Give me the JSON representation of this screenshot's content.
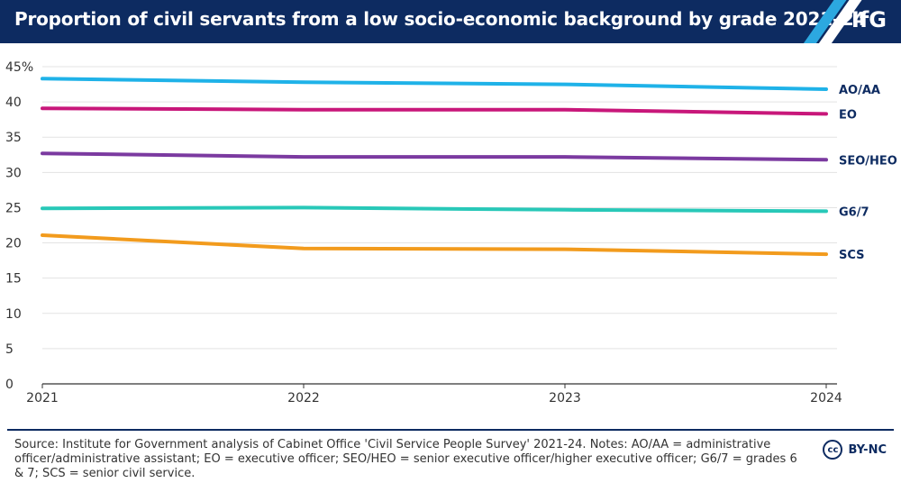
{
  "header": {
    "title": "Proportion of civil servants from a low socio-economic background by grade 2021–24",
    "logo": "IfG",
    "bg_color": "#0d2b61",
    "stripe_colors": [
      "#2ca8e0",
      "#ffffff"
    ]
  },
  "chart_data": {
    "type": "line",
    "title": "Proportion of civil servants from a low socio-economic background by grade 2021–24",
    "x": [
      2021,
      2022,
      2023,
      2024
    ],
    "x_tick_labels": [
      "2021",
      "2022",
      "2023",
      "2024"
    ],
    "ylim": [
      0,
      45
    ],
    "y_ticks": [
      0,
      5,
      10,
      15,
      20,
      25,
      30,
      35,
      40,
      45
    ],
    "y_tick_labels": [
      "0",
      "5",
      "10",
      "15",
      "20",
      "25",
      "30",
      "35",
      "40",
      "45%"
    ],
    "xlabel": "",
    "ylabel": "",
    "grid": true,
    "series": [
      {
        "name": "AO/AA",
        "color": "#1fb2e8",
        "values": [
          43.3,
          42.8,
          42.5,
          41.8
        ]
      },
      {
        "name": "EO",
        "color": "#c8177a",
        "values": [
          39.1,
          38.9,
          38.9,
          38.3
        ]
      },
      {
        "name": "SEO/HEO",
        "color": "#7b3aa0",
        "values": [
          32.7,
          32.2,
          32.2,
          31.8
        ]
      },
      {
        "name": "G6/7",
        "color": "#28c8b8",
        "values": [
          24.9,
          25.0,
          24.7,
          24.5
        ]
      },
      {
        "name": "SCS",
        "color": "#f29b1d",
        "values": [
          21.1,
          19.2,
          19.1,
          18.4
        ]
      }
    ]
  },
  "footer": {
    "source": "Source: Institute for Government analysis of Cabinet Office 'Civil Service People Survey' 2021-24. Notes: AO/AA = administrative officer/administrative assistant; EO = executive officer; SEO/HEO = senior executive officer/higher executive officer; G6/7 = grades 6 & 7; SCS = senior civil service.",
    "cc_badge": "cc",
    "license": "BY-NC"
  }
}
